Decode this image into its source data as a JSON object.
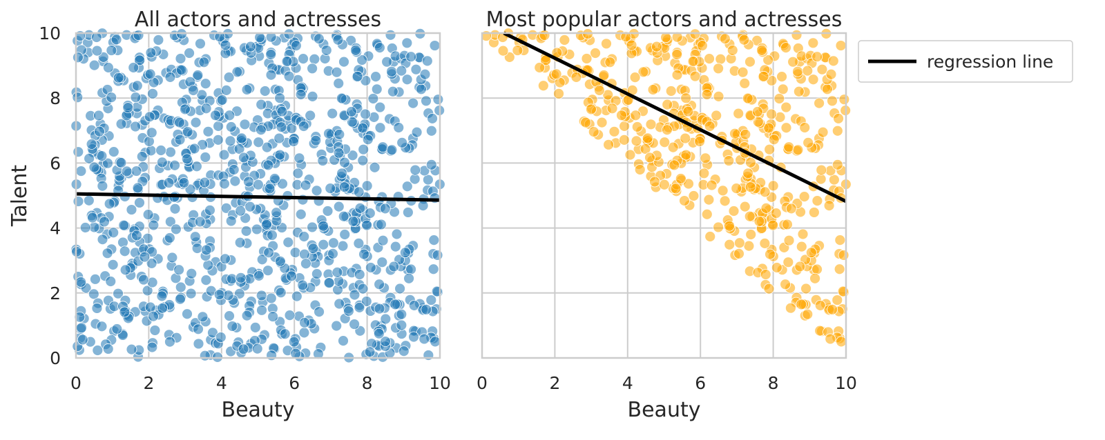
{
  "chart_data": [
    {
      "type": "scatter",
      "title": "All actors and actresses",
      "xlabel": "Beauty",
      "ylabel": "Talent",
      "xlim": [
        0,
        10
      ],
      "ylim": [
        0,
        10
      ],
      "xticks": [
        "0",
        "2",
        "4",
        "6",
        "8",
        "10"
      ],
      "yticks": [
        "0",
        "2",
        "4",
        "6",
        "8",
        "10"
      ],
      "grid": true,
      "point_color": "#1f77b4",
      "regression": {
        "x": [
          0,
          10
        ],
        "y": [
          5.05,
          4.86
        ]
      },
      "filter": "none",
      "n_points": 1000,
      "seed": 7
    },
    {
      "type": "scatter",
      "title": "Most popular actors and actresses",
      "xlabel": "Beauty",
      "ylabel": "",
      "xlim": [
        0,
        10
      ],
      "ylim": [
        0,
        10
      ],
      "xticks": [
        "0",
        "2",
        "4",
        "6",
        "8",
        "10"
      ],
      "yticks": [],
      "grid": true,
      "point_color": "#ffa500",
      "regression": {
        "x": [
          0.6,
          10
        ],
        "y": [
          10.0,
          4.82
        ]
      },
      "filter": "beauty_plus_talent_gt_10",
      "n_points": 1000,
      "seed": 7
    }
  ],
  "legend": {
    "placement": "outside-right",
    "entries": [
      {
        "label": "regression line",
        "color": "#000000"
      }
    ]
  }
}
